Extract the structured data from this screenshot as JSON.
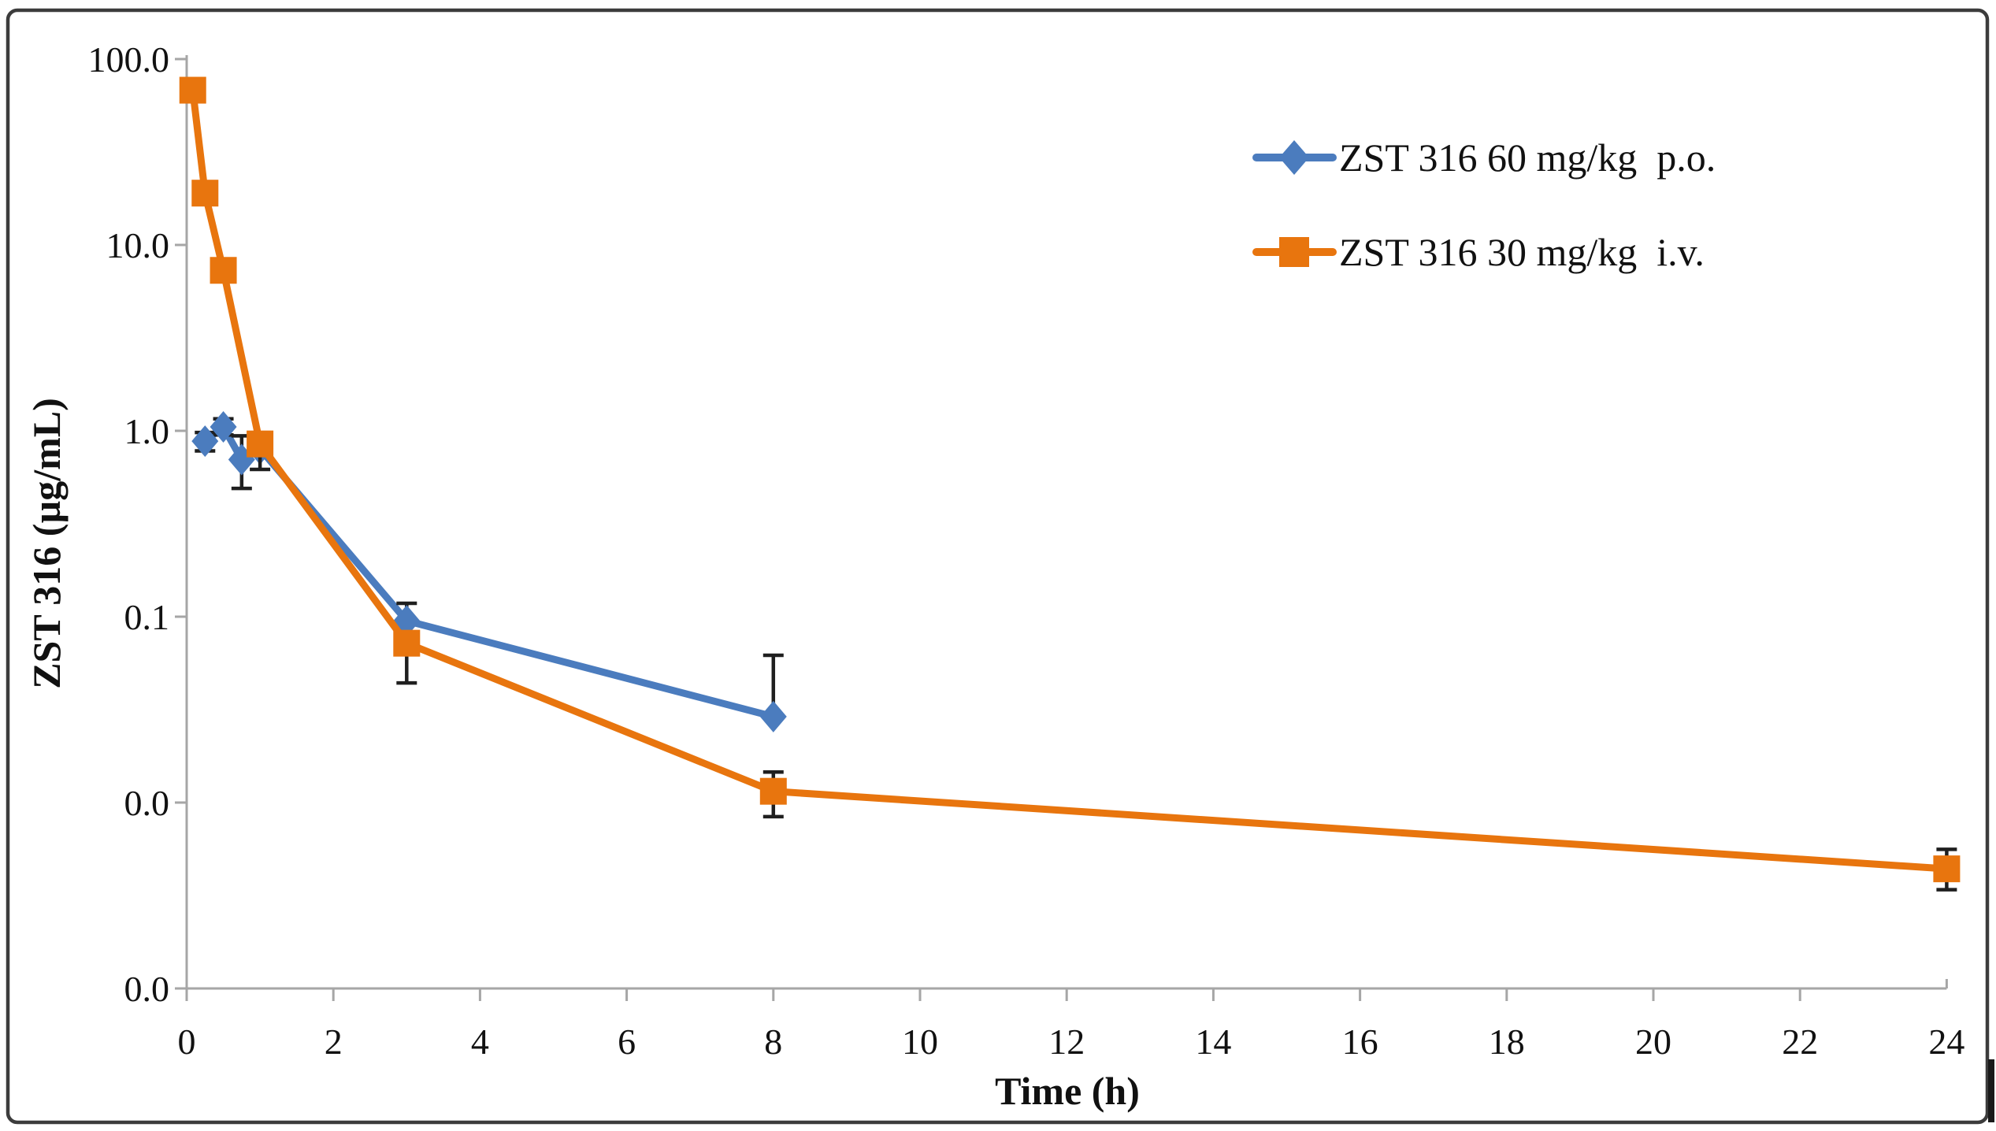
{
  "figure": {
    "background": "#ffffff",
    "frame_color": "#3c3c3c",
    "axis_color": "#a6a6a6",
    "error_bar_color": "#1f1f1f",
    "text_color": "#111111"
  },
  "chart_data": {
    "type": "line",
    "title": "",
    "xlabel": "Time (h)",
    "ylabel": "ZST 316 (µg/mL)",
    "x_axis": {
      "min": 0,
      "max": 24,
      "tick_step": 2,
      "tick_labels": [
        "0",
        "2",
        "4",
        "6",
        "8",
        "10",
        "12",
        "14",
        "16",
        "18",
        "20",
        "22",
        "24"
      ]
    },
    "y_axis": {
      "scale": "log",
      "min": 0.001,
      "max": 100,
      "ticks": [
        {
          "value": 100,
          "label": "100.0"
        },
        {
          "value": 10,
          "label": "10.0"
        },
        {
          "value": 1,
          "label": "1.0"
        },
        {
          "value": 0.1,
          "label": "0.1"
        },
        {
          "value": 0.01,
          "label": "0.0"
        },
        {
          "value": 0.001,
          "label": "0.0"
        }
      ]
    },
    "legend": {
      "position": "top-right",
      "entries": [
        "ZST 316 60 mg/kg  p.o.",
        "ZST 316 30 mg/kg  i.v."
      ]
    },
    "series": [
      {
        "name": "ZST 316 60 mg/kg  p.o.",
        "route": "oral",
        "color": "#4B7CBE",
        "marker": "diamond",
        "points": [
          {
            "x": 0.25,
            "y": 0.88,
            "err_lo": 0.78,
            "err_hi": 0.98
          },
          {
            "x": 0.5,
            "y": 1.05,
            "err_lo": 0.95,
            "err_hi": 1.16
          },
          {
            "x": 0.75,
            "y": 0.7,
            "err_lo": 0.49,
            "err_hi": 0.94
          },
          {
            "x": 1,
            "y": 0.8,
            "err_lo": null,
            "err_hi": null
          },
          {
            "x": 3,
            "y": 0.095,
            "err_lo": 0.072,
            "err_hi": 0.118
          },
          {
            "x": 8,
            "y": 0.029,
            "err_lo": null,
            "err_hi": 0.062
          }
        ]
      },
      {
        "name": "ZST 316 30 mg/kg  i.v.",
        "route": "intravenous",
        "color": "#E8750E",
        "marker": "square",
        "points": [
          {
            "x": 0.083,
            "y": 68,
            "err_lo": null,
            "err_hi": null
          },
          {
            "x": 0.25,
            "y": 19,
            "err_lo": null,
            "err_hi": null
          },
          {
            "x": 0.5,
            "y": 7.3,
            "err_lo": null,
            "err_hi": null
          },
          {
            "x": 1,
            "y": 0.85,
            "err_lo": 0.62,
            "err_hi": null
          },
          {
            "x": 3,
            "y": 0.072,
            "err_lo": 0.044,
            "err_hi": null
          },
          {
            "x": 8,
            "y": 0.0115,
            "err_lo": 0.0084,
            "err_hi": 0.0146
          },
          {
            "x": 24,
            "y": 0.0044,
            "err_lo": 0.0034,
            "err_hi": 0.0056
          }
        ]
      }
    ]
  }
}
